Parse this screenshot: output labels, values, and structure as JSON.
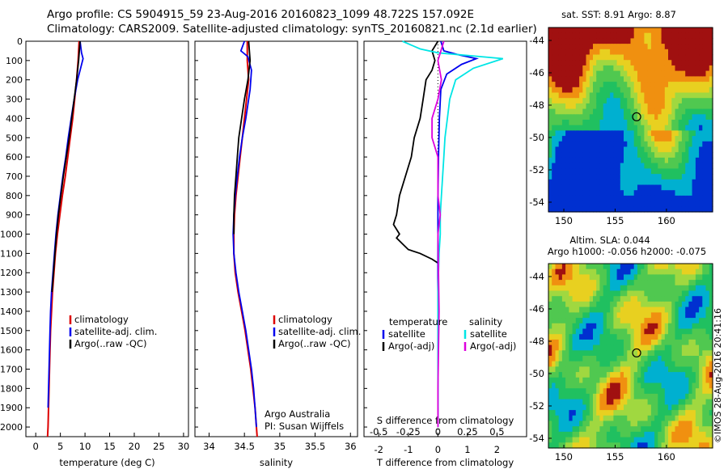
{
  "header": {
    "line1": "Argo profile: CS 5904915_59 23-Aug-2016 20160823_1099 48.722S 157.092E",
    "line2": "Climatology: CARS2009. Satellite-adjusted climatology: synTS_20160821.nc (2.1d earlier)"
  },
  "credit": "©IMOS 28-Aug-2016 20:41:16",
  "chart_data": [
    {
      "type": "line",
      "panel": "temperature",
      "xlabel": "temperature (deg C)",
      "xlim": [
        -2,
        31
      ],
      "xticks": [
        "0",
        "5",
        "10",
        "15",
        "20",
        "25",
        "30"
      ],
      "ylim": [
        0,
        2050
      ],
      "yticks": [
        "0",
        "100",
        "200",
        "300",
        "400",
        "500",
        "600",
        "700",
        "800",
        "900",
        "1000",
        "1100",
        "1200",
        "1300",
        "1400",
        "1500",
        "1600",
        "1700",
        "1800",
        "1900",
        "2000"
      ],
      "legend": [
        "climatology",
        "satellite-adj. clim.",
        "Argo(..raw -QC)"
      ],
      "legend_location": "lower-right",
      "colors": {
        "climatology": "#dd0000",
        "satellite": "#0000ee",
        "argo": "#000000"
      },
      "series": [
        {
          "name": "climatology",
          "x": [
            8.8,
            8.6,
            8.3,
            7.9,
            7.5,
            7.0,
            6.5,
            6.0,
            5.4,
            4.9,
            4.4,
            4.0,
            3.7,
            3.4,
            3.2,
            3.0,
            2.9,
            2.8,
            2.7,
            2.6,
            2.5,
            2.4
          ],
          "y": [
            0,
            100,
            200,
            300,
            400,
            500,
            600,
            700,
            800,
            900,
            1000,
            1100,
            1200,
            1300,
            1400,
            1500,
            1600,
            1700,
            1800,
            1900,
            2000,
            2050
          ]
        },
        {
          "name": "satellite-adj. clim.",
          "x": [
            9.0,
            9.3,
            9.6,
            8.5,
            7.8,
            7.2,
            6.6,
            6.1,
            5.5,
            5.0,
            4.5,
            4.1,
            3.8,
            3.5,
            3.2,
            3.0,
            2.9,
            2.8,
            2.7,
            2.6,
            2.5
          ],
          "y": [
            0,
            60,
            90,
            200,
            300,
            400,
            500,
            600,
            700,
            800,
            900,
            1000,
            1100,
            1200,
            1300,
            1400,
            1500,
            1600,
            1700,
            1800,
            1900
          ]
        },
        {
          "name": "Argo(..raw -QC)",
          "x": [
            9.0,
            8.7,
            8.3,
            7.8,
            7.3,
            6.8,
            6.2,
            5.6,
            5.1,
            4.6,
            4.2,
            3.9,
            3.6,
            3.3
          ],
          "y": [
            0,
            100,
            200,
            300,
            400,
            500,
            600,
            700,
            800,
            900,
            1000,
            1100,
            1200,
            1300
          ]
        }
      ]
    },
    {
      "type": "line",
      "panel": "salinity",
      "xlabel": "salinity",
      "xlim": [
        33.8,
        36.1
      ],
      "xticks": [
        "34",
        "34.5",
        "35",
        "35.5",
        "36"
      ],
      "ylim": [
        0,
        2050
      ],
      "legend": [
        "climatology",
        "satellite-adj. clim.",
        "Argo(..raw -QC)"
      ],
      "legend_location": "lower-right",
      "annotation": [
        "Argo Australia",
        "PI: Susan Wijffels"
      ],
      "series": [
        {
          "name": "climatology",
          "x": [
            34.54,
            34.54,
            34.56,
            34.53,
            34.5,
            34.47,
            34.44,
            34.41,
            34.38,
            34.36,
            34.35,
            34.35,
            34.37,
            34.41,
            34.46,
            34.51,
            34.55,
            34.59,
            34.62,
            34.65,
            34.67,
            34.68
          ],
          "y": [
            0,
            100,
            200,
            300,
            400,
            500,
            600,
            700,
            800,
            900,
            1000,
            1100,
            1200,
            1300,
            1400,
            1500,
            1600,
            1700,
            1800,
            1900,
            2000,
            2050
          ]
        },
        {
          "name": "satellite-adj. clim.",
          "x": [
            34.5,
            34.45,
            34.55,
            34.6,
            34.58,
            34.52,
            34.47,
            34.43,
            34.4,
            34.37,
            34.35,
            34.34,
            34.35,
            34.38,
            34.42,
            34.47,
            34.52,
            34.56,
            34.6,
            34.63,
            34.65,
            34.67
          ],
          "y": [
            0,
            50,
            80,
            150,
            250,
            400,
            500,
            600,
            700,
            800,
            900,
            1000,
            1100,
            1200,
            1300,
            1400,
            1500,
            1600,
            1700,
            1800,
            1900,
            2000
          ]
        },
        {
          "name": "Argo(..raw -QC)",
          "x": [
            34.56,
            34.58,
            34.55,
            34.5,
            34.46,
            34.42,
            34.4,
            34.38,
            34.36,
            34.35,
            34.35
          ],
          "y": [
            0,
            100,
            200,
            300,
            400,
            500,
            600,
            700,
            800,
            900,
            1000
          ]
        }
      ]
    },
    {
      "type": "line",
      "panel": "difference",
      "xlabel": "T difference from climatology",
      "xlabel_top": "S difference from climatology",
      "xticks": [
        "-2",
        "-1",
        "0",
        "1",
        "2"
      ],
      "xticks_top": [
        "-0.5",
        "-0.25",
        "0",
        "0.25",
        "0.5"
      ],
      "xlim": [
        -2.5,
        3.0
      ],
      "ylim": [
        0,
        2050
      ],
      "legend_temperature": {
        "title": "temperature",
        "items": [
          "satellite",
          "Argo(-adj)"
        ]
      },
      "legend_salinity": {
        "title": "salinity",
        "items": [
          "satellite",
          "Argo(-adj)"
        ]
      },
      "series": [
        {
          "name": "temperature satellite",
          "x": [
            0.1,
            0.2,
            0.7,
            1.3,
            0.8,
            0.3,
            0.1,
            0.05,
            0.02,
            0.0,
            0.0,
            0.0,
            0.0,
            0.0,
            0.0,
            0.0,
            0.0,
            0.0,
            0.0,
            0.0,
            0.0
          ],
          "y": [
            0,
            50,
            70,
            90,
            120,
            170,
            250,
            400,
            600,
            800,
            1000,
            1100,
            1200,
            1300,
            1400,
            1500,
            1600,
            1700,
            1800,
            1900,
            2000
          ]
        },
        {
          "name": "temperature Argo(-adj)",
          "x": [
            0.0,
            -0.2,
            -0.1,
            -0.2,
            -0.4,
            -0.5,
            -0.6,
            -0.8,
            -0.9,
            -1.1,
            -1.3,
            -1.4,
            -1.5,
            -1.3,
            -1.4,
            -1.2,
            -1.0,
            -0.6,
            -0.2,
            0.0
          ],
          "y": [
            0,
            50,
            100,
            150,
            200,
            300,
            400,
            500,
            600,
            700,
            800,
            900,
            950,
            1000,
            1020,
            1050,
            1080,
            1100,
            1130,
            1150
          ]
        },
        {
          "name": "salinity satellite",
          "x": [
            -0.3,
            -0.15,
            0.0,
            0.55,
            0.3,
            0.15,
            0.1,
            0.08,
            0.06,
            0.05,
            0.04,
            0.03,
            0.02,
            0.02,
            0.01,
            0.0,
            0.0,
            0.0,
            0.0,
            0.0,
            0.0
          ],
          "y": [
            0,
            40,
            60,
            90,
            140,
            200,
            300,
            400,
            500,
            600,
            700,
            800,
            900,
            1000,
            1100,
            1300,
            1500,
            1600,
            1700,
            1800,
            1900
          ]
        },
        {
          "name": "salinity Argo(-adj)",
          "x": [
            0.05,
            0.0,
            0.03,
            0.0,
            -0.05,
            -0.05,
            0.0,
            0.0,
            0.0,
            0.02,
            0.0,
            0.01,
            0.0,
            0.0
          ],
          "y": [
            0,
            100,
            200,
            300,
            400,
            500,
            600,
            700,
            800,
            900,
            1000,
            1400,
            1800,
            2000
          ]
        }
      ]
    },
    {
      "type": "heatmap",
      "panel": "sst-map",
      "title": "sat. SST: 8.91  Argo: 8.87",
      "xticks": [
        "150",
        "155",
        "160"
      ],
      "yticks": [
        "-44",
        "-46",
        "-48",
        "-50",
        "-52",
        "-54"
      ],
      "xlim": [
        148.5,
        164.5
      ],
      "ylim": [
        -54.6,
        -43.2
      ],
      "marker": {
        "lon": 157.092,
        "lat": -48.722
      }
    },
    {
      "type": "heatmap",
      "panel": "sla-map",
      "title": "Altim. SLA: 0.044",
      "subtitle": "Argo h1000: -0.056 h2000: -0.075",
      "xticks": [
        "150",
        "155",
        "160"
      ],
      "yticks": [
        "-44",
        "-46",
        "-48",
        "-50",
        "-52",
        "-54"
      ],
      "xlim": [
        148.5,
        164.5
      ],
      "ylim": [
        -54.6,
        -43.2
      ],
      "marker": {
        "lon": 157.092,
        "lat": -48.722
      }
    }
  ]
}
